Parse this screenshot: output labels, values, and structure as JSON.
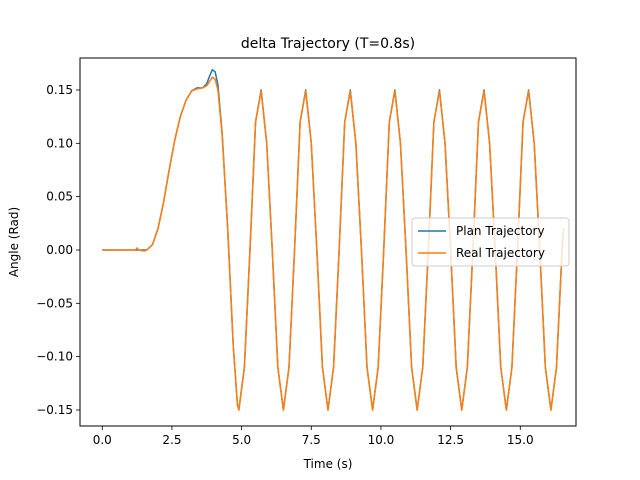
{
  "chart_data": {
    "type": "line",
    "title": "delta Trajectory (T=0.8s)",
    "xlabel": "Time (s)",
    "ylabel": "Angle (Rad)",
    "xlim": [
      -0.8,
      17.0
    ],
    "ylim": [
      -0.165,
      0.18
    ],
    "xticks": [
      0.0,
      2.5,
      5.0,
      7.5,
      10.0,
      12.5,
      15.0
    ],
    "xtick_labels": [
      "0.0",
      "2.5",
      "5.0",
      "7.5",
      "10.0",
      "12.5",
      "15.0"
    ],
    "yticks": [
      -0.15,
      -0.1,
      -0.05,
      0.0,
      0.05,
      0.1,
      0.15
    ],
    "ytick_labels": [
      "−0.15",
      "−0.10",
      "−0.05",
      "0.00",
      "0.05",
      "0.10",
      "0.15"
    ],
    "grid": false,
    "legend_position": "center-right",
    "series": [
      {
        "name": "Plan Trajectory",
        "color": "#1f77b4",
        "points": [
          [
            0.0,
            0.0
          ],
          [
            1.6,
            0.0
          ],
          [
            1.8,
            0.005
          ],
          [
            2.0,
            0.02
          ],
          [
            2.2,
            0.045
          ],
          [
            2.4,
            0.075
          ],
          [
            2.6,
            0.103
          ],
          [
            2.8,
            0.125
          ],
          [
            3.0,
            0.14
          ],
          [
            3.2,
            0.149
          ],
          [
            3.4,
            0.152
          ],
          [
            3.6,
            0.152
          ],
          [
            3.75,
            0.156
          ],
          [
            3.85,
            0.163
          ],
          [
            3.95,
            0.169
          ],
          [
            4.05,
            0.167
          ],
          [
            4.15,
            0.155
          ],
          [
            4.3,
            0.11
          ],
          [
            4.5,
            0.02
          ],
          [
            4.7,
            -0.09
          ],
          [
            4.85,
            -0.145
          ],
          [
            4.9,
            -0.15
          ],
          [
            5.1,
            -0.11
          ],
          [
            5.3,
            0.0
          ],
          [
            5.5,
            0.12
          ],
          [
            5.7,
            0.15
          ],
          [
            5.9,
            0.1
          ],
          [
            6.1,
            0.0
          ],
          [
            6.3,
            -0.11
          ],
          [
            6.5,
            -0.15
          ],
          [
            6.7,
            -0.11
          ],
          [
            6.9,
            0.0
          ],
          [
            7.1,
            0.12
          ],
          [
            7.3,
            0.15
          ],
          [
            7.5,
            0.1
          ],
          [
            7.7,
            0.0
          ],
          [
            7.9,
            -0.11
          ],
          [
            8.1,
            -0.15
          ],
          [
            8.3,
            -0.11
          ],
          [
            8.5,
            0.0
          ],
          [
            8.7,
            0.12
          ],
          [
            8.9,
            0.15
          ],
          [
            9.1,
            0.1
          ],
          [
            9.3,
            0.0
          ],
          [
            9.5,
            -0.11
          ],
          [
            9.7,
            -0.15
          ],
          [
            9.9,
            -0.11
          ],
          [
            10.1,
            0.0
          ],
          [
            10.3,
            0.12
          ],
          [
            10.5,
            0.15
          ],
          [
            10.7,
            0.1
          ],
          [
            10.9,
            0.0
          ],
          [
            11.1,
            -0.11
          ],
          [
            11.3,
            -0.15
          ],
          [
            11.5,
            -0.11
          ],
          [
            11.7,
            0.0
          ],
          [
            11.9,
            0.12
          ],
          [
            12.1,
            0.15
          ],
          [
            12.3,
            0.1
          ],
          [
            12.5,
            0.0
          ],
          [
            12.7,
            -0.11
          ],
          [
            12.9,
            -0.15
          ],
          [
            13.1,
            -0.11
          ],
          [
            13.3,
            0.0
          ],
          [
            13.5,
            0.12
          ],
          [
            13.7,
            0.15
          ],
          [
            13.9,
            0.1
          ],
          [
            14.1,
            0.0
          ],
          [
            14.3,
            -0.11
          ],
          [
            14.5,
            -0.15
          ],
          [
            14.7,
            -0.11
          ],
          [
            14.9,
            0.0
          ],
          [
            15.1,
            0.12
          ],
          [
            15.3,
            0.15
          ],
          [
            15.5,
            0.1
          ],
          [
            15.7,
            0.0
          ],
          [
            15.9,
            -0.11
          ],
          [
            16.1,
            -0.15
          ],
          [
            16.3,
            -0.11
          ],
          [
            16.5,
            0.0
          ],
          [
            16.55,
            0.02
          ]
        ]
      },
      {
        "name": "Real Trajectory",
        "color": "#ff7f0e",
        "points": [
          [
            0.0,
            0.0
          ],
          [
            1.2,
            0.0
          ],
          [
            1.25,
            0.002
          ],
          [
            1.3,
            0.0
          ],
          [
            1.5,
            -0.001
          ],
          [
            1.6,
            0.0
          ],
          [
            1.8,
            0.005
          ],
          [
            2.0,
            0.02
          ],
          [
            2.2,
            0.045
          ],
          [
            2.4,
            0.075
          ],
          [
            2.6,
            0.103
          ],
          [
            2.8,
            0.125
          ],
          [
            3.0,
            0.14
          ],
          [
            3.2,
            0.149
          ],
          [
            3.4,
            0.151
          ],
          [
            3.6,
            0.152
          ],
          [
            3.75,
            0.154
          ],
          [
            3.85,
            0.158
          ],
          [
            3.95,
            0.162
          ],
          [
            4.05,
            0.16
          ],
          [
            4.15,
            0.15
          ],
          [
            4.3,
            0.108
          ],
          [
            4.5,
            0.02
          ],
          [
            4.7,
            -0.09
          ],
          [
            4.85,
            -0.145
          ],
          [
            4.9,
            -0.15
          ],
          [
            5.1,
            -0.11
          ],
          [
            5.3,
            0.0
          ],
          [
            5.5,
            0.12
          ],
          [
            5.7,
            0.149
          ],
          [
            5.9,
            0.1
          ],
          [
            6.1,
            0.0
          ],
          [
            6.3,
            -0.11
          ],
          [
            6.5,
            -0.15
          ],
          [
            6.7,
            -0.11
          ],
          [
            6.9,
            0.0
          ],
          [
            7.1,
            0.12
          ],
          [
            7.3,
            0.149
          ],
          [
            7.5,
            0.1
          ],
          [
            7.7,
            0.0
          ],
          [
            7.9,
            -0.11
          ],
          [
            8.1,
            -0.15
          ],
          [
            8.3,
            -0.11
          ],
          [
            8.5,
            0.0
          ],
          [
            8.7,
            0.12
          ],
          [
            8.9,
            0.149
          ],
          [
            9.1,
            0.1
          ],
          [
            9.3,
            0.0
          ],
          [
            9.5,
            -0.11
          ],
          [
            9.7,
            -0.15
          ],
          [
            9.9,
            -0.11
          ],
          [
            10.1,
            0.0
          ],
          [
            10.3,
            0.12
          ],
          [
            10.5,
            0.149
          ],
          [
            10.7,
            0.1
          ],
          [
            10.9,
            0.0
          ],
          [
            11.1,
            -0.11
          ],
          [
            11.3,
            -0.15
          ],
          [
            11.5,
            -0.11
          ],
          [
            11.7,
            0.0
          ],
          [
            11.9,
            0.12
          ],
          [
            12.1,
            0.149
          ],
          [
            12.3,
            0.1
          ],
          [
            12.5,
            0.0
          ],
          [
            12.7,
            -0.11
          ],
          [
            12.9,
            -0.15
          ],
          [
            13.1,
            -0.11
          ],
          [
            13.3,
            0.0
          ],
          [
            13.5,
            0.12
          ],
          [
            13.7,
            0.149
          ],
          [
            13.9,
            0.1
          ],
          [
            14.1,
            0.0
          ],
          [
            14.3,
            -0.11
          ],
          [
            14.5,
            -0.15
          ],
          [
            14.7,
            -0.11
          ],
          [
            14.9,
            0.0
          ],
          [
            15.1,
            0.12
          ],
          [
            15.3,
            0.149
          ],
          [
            15.5,
            0.1
          ],
          [
            15.7,
            0.0
          ],
          [
            15.9,
            -0.11
          ],
          [
            16.1,
            -0.15
          ],
          [
            16.3,
            -0.11
          ],
          [
            16.5,
            0.0
          ],
          [
            16.55,
            0.02
          ]
        ]
      }
    ]
  }
}
